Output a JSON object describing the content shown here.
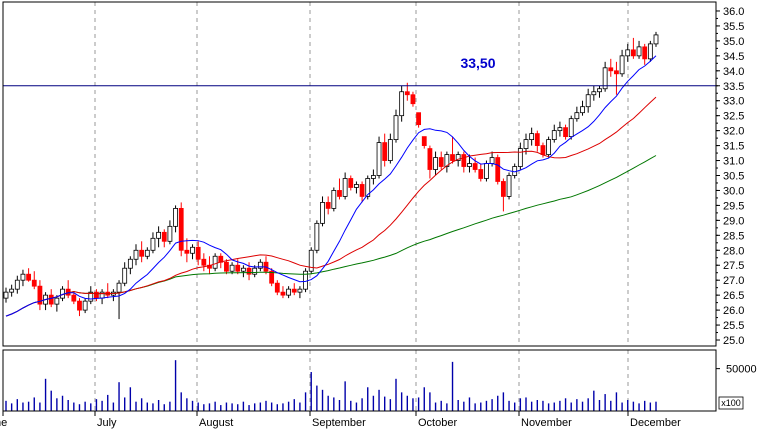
{
  "chart_data": {
    "type": "candlestick",
    "title": "",
    "price_axis": {
      "ylim": [
        24.8,
        36.3
      ],
      "ticks": [
        "25.0",
        "25.5",
        "26.0",
        "26.5",
        "27.0",
        "27.5",
        "28.0",
        "28.5",
        "29.0",
        "29.5",
        "30.0",
        "30.5",
        "31.0",
        "31.5",
        "32.0",
        "32.5",
        "33.0",
        "33.5",
        "34.0",
        "34.5",
        "35.0",
        "35.5",
        "36.0"
      ]
    },
    "volume_axis": {
      "ylim": [
        0,
        72000
      ],
      "ticks": [
        "50000"
      ],
      "unit_label": "x100"
    },
    "months": [
      "ne",
      "July",
      "August",
      "September",
      "October",
      "November",
      "December"
    ],
    "horizontal_line": {
      "value": 33.5,
      "label": "33,50",
      "color": "#000080"
    },
    "colors": {
      "up": "#ffffff",
      "down": "#ff0000",
      "outline": "#000000",
      "ma_short": "#0000ff",
      "ma_mid": "#dd0000",
      "ma_long": "#007700",
      "volume": "#0000aa",
      "grid": "#999999"
    },
    "candles": [
      {
        "o": 26.4,
        "h": 26.75,
        "l": 26.25,
        "c": 26.6,
        "v": 12000
      },
      {
        "o": 26.6,
        "h": 26.85,
        "l": 26.45,
        "c": 26.7,
        "v": 9000
      },
      {
        "o": 26.7,
        "h": 27.15,
        "l": 26.55,
        "c": 27.0,
        "v": 14000
      },
      {
        "o": 27.0,
        "h": 27.35,
        "l": 26.8,
        "c": 27.2,
        "v": 10000
      },
      {
        "o": 27.2,
        "h": 27.4,
        "l": 26.95,
        "c": 27.0,
        "v": 11000
      },
      {
        "o": 27.0,
        "h": 27.3,
        "l": 26.7,
        "c": 26.8,
        "v": 16000
      },
      {
        "o": 26.8,
        "h": 27.0,
        "l": 26.0,
        "c": 26.2,
        "v": 10000
      },
      {
        "o": 26.2,
        "h": 26.6,
        "l": 26.0,
        "c": 26.5,
        "v": 38000
      },
      {
        "o": 26.5,
        "h": 26.7,
        "l": 26.1,
        "c": 26.2,
        "v": 24000
      },
      {
        "o": 26.2,
        "h": 26.5,
        "l": 25.95,
        "c": 26.4,
        "v": 15000
      },
      {
        "o": 26.4,
        "h": 26.8,
        "l": 26.3,
        "c": 26.7,
        "v": 18000
      },
      {
        "o": 26.7,
        "h": 27.0,
        "l": 26.4,
        "c": 26.5,
        "v": 13000
      },
      {
        "o": 26.5,
        "h": 26.6,
        "l": 26.2,
        "c": 26.3,
        "v": 10000
      },
      {
        "o": 26.3,
        "h": 26.4,
        "l": 25.8,
        "c": 26.0,
        "v": 8000
      },
      {
        "o": 26.0,
        "h": 26.4,
        "l": 25.9,
        "c": 26.3,
        "v": 11000
      },
      {
        "o": 26.3,
        "h": 26.8,
        "l": 26.2,
        "c": 26.6,
        "v": 9000
      },
      {
        "o": 26.6,
        "h": 26.7,
        "l": 26.3,
        "c": 26.4,
        "v": 14000
      },
      {
        "o": 26.4,
        "h": 26.7,
        "l": 26.2,
        "c": 26.6,
        "v": 12000
      },
      {
        "o": 26.6,
        "h": 26.9,
        "l": 26.4,
        "c": 26.5,
        "v": 19000
      },
      {
        "o": 26.5,
        "h": 26.7,
        "l": 26.3,
        "c": 26.6,
        "v": 10000
      },
      {
        "o": 26.6,
        "h": 27.0,
        "l": 25.7,
        "c": 26.9,
        "v": 34000
      },
      {
        "o": 26.9,
        "h": 27.6,
        "l": 26.8,
        "c": 27.4,
        "v": 16000
      },
      {
        "o": 27.4,
        "h": 27.8,
        "l": 27.2,
        "c": 27.7,
        "v": 28000
      },
      {
        "o": 27.7,
        "h": 28.2,
        "l": 27.5,
        "c": 28.0,
        "v": 11000
      },
      {
        "o": 28.0,
        "h": 28.3,
        "l": 27.6,
        "c": 27.8,
        "v": 15000
      },
      {
        "o": 27.8,
        "h": 28.1,
        "l": 27.7,
        "c": 28.0,
        "v": 10000
      },
      {
        "o": 28.0,
        "h": 28.6,
        "l": 27.9,
        "c": 28.4,
        "v": 9000
      },
      {
        "o": 28.4,
        "h": 28.8,
        "l": 28.1,
        "c": 28.6,
        "v": 13000
      },
      {
        "o": 28.6,
        "h": 28.7,
        "l": 28.1,
        "c": 28.3,
        "v": 8000
      },
      {
        "o": 28.3,
        "h": 29.0,
        "l": 28.2,
        "c": 28.8,
        "v": 11000
      },
      {
        "o": 28.8,
        "h": 29.5,
        "l": 28.6,
        "c": 29.4,
        "v": 60000
      },
      {
        "o": 29.4,
        "h": 29.6,
        "l": 27.8,
        "c": 28.0,
        "v": 22000
      },
      {
        "o": 28.0,
        "h": 28.4,
        "l": 27.6,
        "c": 27.9,
        "v": 15000
      },
      {
        "o": 27.9,
        "h": 28.2,
        "l": 27.7,
        "c": 28.1,
        "v": 12000
      },
      {
        "o": 28.1,
        "h": 28.3,
        "l": 27.5,
        "c": 27.7,
        "v": 10000
      },
      {
        "o": 27.7,
        "h": 27.9,
        "l": 27.3,
        "c": 27.5,
        "v": 8000
      },
      {
        "o": 27.5,
        "h": 27.8,
        "l": 27.2,
        "c": 27.4,
        "v": 9000
      },
      {
        "o": 27.4,
        "h": 27.9,
        "l": 27.3,
        "c": 27.8,
        "v": 11000
      },
      {
        "o": 27.8,
        "h": 27.9,
        "l": 27.4,
        "c": 27.6,
        "v": 7000
      },
      {
        "o": 27.6,
        "h": 27.7,
        "l": 27.2,
        "c": 27.3,
        "v": 10000
      },
      {
        "o": 27.3,
        "h": 27.6,
        "l": 27.2,
        "c": 27.5,
        "v": 9000
      },
      {
        "o": 27.5,
        "h": 27.7,
        "l": 27.2,
        "c": 27.3,
        "v": 8000
      },
      {
        "o": 27.3,
        "h": 27.5,
        "l": 27.1,
        "c": 27.4,
        "v": 11000
      },
      {
        "o": 27.4,
        "h": 27.6,
        "l": 27.0,
        "c": 27.2,
        "v": 7000
      },
      {
        "o": 27.2,
        "h": 27.5,
        "l": 27.1,
        "c": 27.4,
        "v": 9000
      },
      {
        "o": 27.4,
        "h": 27.7,
        "l": 27.3,
        "c": 27.6,
        "v": 10000
      },
      {
        "o": 27.6,
        "h": 27.8,
        "l": 27.2,
        "c": 27.3,
        "v": 12000
      },
      {
        "o": 27.3,
        "h": 27.4,
        "l": 26.8,
        "c": 26.9,
        "v": 10000
      },
      {
        "o": 26.9,
        "h": 27.0,
        "l": 26.5,
        "c": 26.6,
        "v": 8000
      },
      {
        "o": 26.6,
        "h": 26.8,
        "l": 26.4,
        "c": 26.5,
        "v": 9000
      },
      {
        "o": 26.5,
        "h": 26.8,
        "l": 26.4,
        "c": 26.7,
        "v": 11000
      },
      {
        "o": 26.7,
        "h": 26.9,
        "l": 26.5,
        "c": 26.6,
        "v": 14000
      },
      {
        "o": 26.6,
        "h": 26.8,
        "l": 26.4,
        "c": 26.7,
        "v": 10000
      },
      {
        "o": 26.7,
        "h": 27.4,
        "l": 26.6,
        "c": 27.3,
        "v": 22000
      },
      {
        "o": 27.3,
        "h": 28.1,
        "l": 27.2,
        "c": 28.0,
        "v": 46000
      },
      {
        "o": 28.0,
        "h": 29.0,
        "l": 27.9,
        "c": 28.9,
        "v": 30000
      },
      {
        "o": 28.9,
        "h": 29.8,
        "l": 28.8,
        "c": 29.6,
        "v": 25000
      },
      {
        "o": 29.6,
        "h": 29.8,
        "l": 29.2,
        "c": 29.4,
        "v": 18000
      },
      {
        "o": 29.4,
        "h": 30.1,
        "l": 29.3,
        "c": 30.0,
        "v": 16000
      },
      {
        "o": 30.0,
        "h": 30.4,
        "l": 29.7,
        "c": 29.8,
        "v": 13000
      },
      {
        "o": 29.8,
        "h": 30.6,
        "l": 29.7,
        "c": 30.4,
        "v": 35000
      },
      {
        "o": 30.4,
        "h": 30.5,
        "l": 30.0,
        "c": 30.1,
        "v": 12000
      },
      {
        "o": 30.1,
        "h": 30.3,
        "l": 29.9,
        "c": 30.2,
        "v": 10000
      },
      {
        "o": 30.2,
        "h": 30.3,
        "l": 29.6,
        "c": 29.8,
        "v": 15000
      },
      {
        "o": 29.8,
        "h": 30.5,
        "l": 29.7,
        "c": 30.4,
        "v": 28000
      },
      {
        "o": 30.4,
        "h": 30.7,
        "l": 30.2,
        "c": 30.5,
        "v": 18000
      },
      {
        "o": 30.5,
        "h": 31.8,
        "l": 30.4,
        "c": 31.6,
        "v": 25000
      },
      {
        "o": 31.6,
        "h": 31.9,
        "l": 30.8,
        "c": 31.0,
        "v": 17000
      },
      {
        "o": 31.0,
        "h": 31.9,
        "l": 30.9,
        "c": 31.7,
        "v": 14000
      },
      {
        "o": 31.7,
        "h": 32.7,
        "l": 31.6,
        "c": 32.5,
        "v": 38000
      },
      {
        "o": 32.5,
        "h": 33.5,
        "l": 32.3,
        "c": 33.3,
        "v": 22000
      },
      {
        "o": 33.3,
        "h": 33.6,
        "l": 33.0,
        "c": 33.2,
        "v": 18000
      },
      {
        "o": 33.2,
        "h": 33.3,
        "l": 32.8,
        "c": 32.9,
        "v": 15000
      },
      {
        "o": 32.6,
        "h": 32.6,
        "l": 32.1,
        "c": 32.2,
        "v": 16000
      },
      {
        "o": 31.8,
        "h": 31.8,
        "l": 31.4,
        "c": 31.5,
        "v": 28000
      },
      {
        "o": 31.4,
        "h": 31.5,
        "l": 30.4,
        "c": 30.7,
        "v": 22000
      },
      {
        "o": 30.7,
        "h": 31.3,
        "l": 30.5,
        "c": 31.1,
        "v": 10000
      },
      {
        "o": 31.1,
        "h": 31.3,
        "l": 30.7,
        "c": 30.8,
        "v": 12000
      },
      {
        "o": 30.8,
        "h": 31.3,
        "l": 30.6,
        "c": 31.2,
        "v": 9000
      },
      {
        "o": 31.2,
        "h": 31.8,
        "l": 30.9,
        "c": 31.0,
        "v": 58000
      },
      {
        "o": 31.0,
        "h": 31.3,
        "l": 30.8,
        "c": 31.2,
        "v": 13000
      },
      {
        "o": 31.2,
        "h": 31.3,
        "l": 30.6,
        "c": 30.8,
        "v": 11000
      },
      {
        "o": 30.8,
        "h": 31.2,
        "l": 30.6,
        "c": 30.9,
        "v": 16000
      },
      {
        "o": 30.9,
        "h": 31.1,
        "l": 30.6,
        "c": 30.7,
        "v": 9000
      },
      {
        "o": 30.7,
        "h": 30.9,
        "l": 30.3,
        "c": 30.4,
        "v": 10000
      },
      {
        "o": 30.4,
        "h": 31.0,
        "l": 30.3,
        "c": 30.9,
        "v": 12000
      },
      {
        "o": 30.9,
        "h": 31.3,
        "l": 30.8,
        "c": 31.1,
        "v": 14000
      },
      {
        "o": 31.1,
        "h": 31.2,
        "l": 30.2,
        "c": 30.3,
        "v": 18000
      },
      {
        "o": 30.3,
        "h": 30.4,
        "l": 29.3,
        "c": 29.8,
        "v": 22000
      },
      {
        "o": 29.8,
        "h": 30.6,
        "l": 29.7,
        "c": 30.5,
        "v": 12000
      },
      {
        "o": 30.5,
        "h": 30.9,
        "l": 30.4,
        "c": 30.8,
        "v": 10000
      },
      {
        "o": 30.8,
        "h": 31.6,
        "l": 30.7,
        "c": 31.4,
        "v": 15000
      },
      {
        "o": 31.4,
        "h": 31.9,
        "l": 31.2,
        "c": 31.7,
        "v": 16000
      },
      {
        "o": 31.7,
        "h": 32.1,
        "l": 31.5,
        "c": 31.9,
        "v": 11000
      },
      {
        "o": 31.9,
        "h": 32.0,
        "l": 31.3,
        "c": 31.5,
        "v": 13000
      },
      {
        "o": 31.5,
        "h": 31.6,
        "l": 31.1,
        "c": 31.2,
        "v": 12000
      },
      {
        "o": 31.2,
        "h": 31.8,
        "l": 31.1,
        "c": 31.7,
        "v": 9000
      },
      {
        "o": 31.7,
        "h": 32.2,
        "l": 31.6,
        "c": 32.0,
        "v": 10000
      },
      {
        "o": 32.0,
        "h": 32.3,
        "l": 31.8,
        "c": 32.1,
        "v": 12000
      },
      {
        "o": 32.1,
        "h": 32.2,
        "l": 31.7,
        "c": 31.8,
        "v": 15000
      },
      {
        "o": 31.8,
        "h": 32.5,
        "l": 31.7,
        "c": 32.4,
        "v": 10000
      },
      {
        "o": 32.4,
        "h": 32.8,
        "l": 32.3,
        "c": 32.6,
        "v": 14000
      },
      {
        "o": 32.6,
        "h": 33.0,
        "l": 32.5,
        "c": 32.8,
        "v": 11000
      },
      {
        "o": 32.8,
        "h": 33.4,
        "l": 32.6,
        "c": 33.2,
        "v": 15000
      },
      {
        "o": 33.2,
        "h": 33.5,
        "l": 33.0,
        "c": 33.3,
        "v": 24000
      },
      {
        "o": 33.3,
        "h": 33.5,
        "l": 33.1,
        "c": 33.4,
        "v": 13000
      },
      {
        "o": 33.4,
        "h": 34.3,
        "l": 33.3,
        "c": 34.1,
        "v": 20000
      },
      {
        "o": 34.1,
        "h": 34.4,
        "l": 33.8,
        "c": 34.0,
        "v": 12000
      },
      {
        "o": 34.0,
        "h": 34.3,
        "l": 33.2,
        "c": 33.9,
        "v": 22000
      },
      {
        "o": 33.9,
        "h": 34.7,
        "l": 33.8,
        "c": 34.5,
        "v": 10000
      },
      {
        "o": 34.5,
        "h": 34.9,
        "l": 34.3,
        "c": 34.7,
        "v": 13000
      },
      {
        "o": 34.7,
        "h": 35.1,
        "l": 34.4,
        "c": 34.5,
        "v": 11000
      },
      {
        "o": 34.5,
        "h": 35.0,
        "l": 34.4,
        "c": 34.8,
        "v": 9000
      },
      {
        "o": 34.8,
        "h": 34.9,
        "l": 34.2,
        "c": 34.4,
        "v": 12000
      },
      {
        "o": 34.4,
        "h": 35.0,
        "l": 34.3,
        "c": 34.9,
        "v": 10000
      },
      {
        "o": 34.9,
        "h": 35.3,
        "l": 34.8,
        "c": 35.2,
        "v": 11000
      }
    ]
  }
}
